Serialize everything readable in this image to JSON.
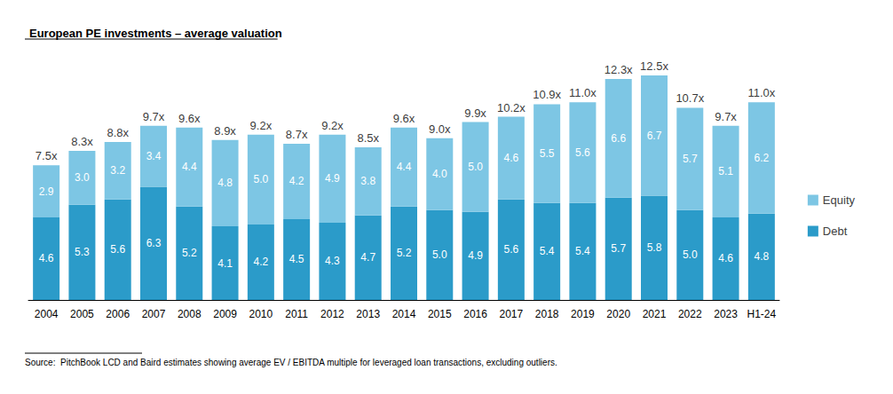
{
  "chart_data": {
    "type": "bar",
    "title": "European PE investments – average valuation",
    "source": "Source:  PitchBook LCD and Baird estimates showing average EV / EBITDA multiple for leveraged loan transactions, excluding outliers.",
    "categories": [
      "2004",
      "2005",
      "2006",
      "2007",
      "2008",
      "2009",
      "2010",
      "2011",
      "2012",
      "2013",
      "2014",
      "2015",
      "2016",
      "2017",
      "2018",
      "2019",
      "2020",
      "2021",
      "2022",
      "2023",
      "H1-24"
    ],
    "series": [
      {
        "name": "Debt",
        "color": "#2b9bc9",
        "values": [
          4.6,
          5.3,
          5.6,
          6.3,
          5.2,
          4.1,
          4.2,
          4.5,
          4.3,
          4.7,
          5.2,
          5.0,
          4.9,
          5.6,
          5.4,
          5.4,
          5.7,
          5.8,
          5.0,
          4.6,
          4.8
        ],
        "value_labels": [
          "4.6",
          "5.3",
          "5.6",
          "6.3",
          "5.2",
          "4.1",
          "4.2",
          "4.5",
          "4.3",
          "4.7",
          "5.2",
          "5.0",
          "4.9",
          "5.6",
          "5.4",
          "5.4",
          "5.7",
          "5.8",
          "5.0",
          "4.6",
          "4.8"
        ]
      },
      {
        "name": "Equity",
        "color": "#7dc6e4",
        "values": [
          2.9,
          3.0,
          3.2,
          3.4,
          4.4,
          4.8,
          5.0,
          4.2,
          4.9,
          3.8,
          4.4,
          4.0,
          5.0,
          4.6,
          5.5,
          5.6,
          6.6,
          6.7,
          5.7,
          5.1,
          6.2
        ],
        "value_labels": [
          "2.9",
          "3.0",
          "3.2",
          "3.4",
          "4.4",
          "4.8",
          "5.0",
          "4.2",
          "4.9",
          "3.8",
          "4.4",
          "4.0",
          "5.0",
          "4.6",
          "5.5",
          "5.6",
          "6.6",
          "6.7",
          "5.7",
          "5.1",
          "6.2"
        ]
      }
    ],
    "totals": [
      7.5,
      8.3,
      8.8,
      9.7,
      9.6,
      8.9,
      9.2,
      8.7,
      9.2,
      8.5,
      9.6,
      9.0,
      9.9,
      10.2,
      10.9,
      11.0,
      12.3,
      12.5,
      10.7,
      9.7,
      11.0
    ],
    "total_labels": [
      "7.5x",
      "8.3x",
      "8.8x",
      "9.7x",
      "9.6x",
      "8.9x",
      "9.2x",
      "8.7x",
      "9.2x",
      "8.5x",
      "9.6x",
      "9.0x",
      "9.9x",
      "10.2x",
      "10.9x",
      "11.0x",
      "12.3x",
      "12.5x",
      "10.7x",
      "9.7x",
      "11.0x"
    ],
    "ylim": [
      0,
      12.5
    ],
    "stacked": true,
    "data_labels": true,
    "grid": false,
    "tick_labels": "x",
    "legend": "right"
  }
}
